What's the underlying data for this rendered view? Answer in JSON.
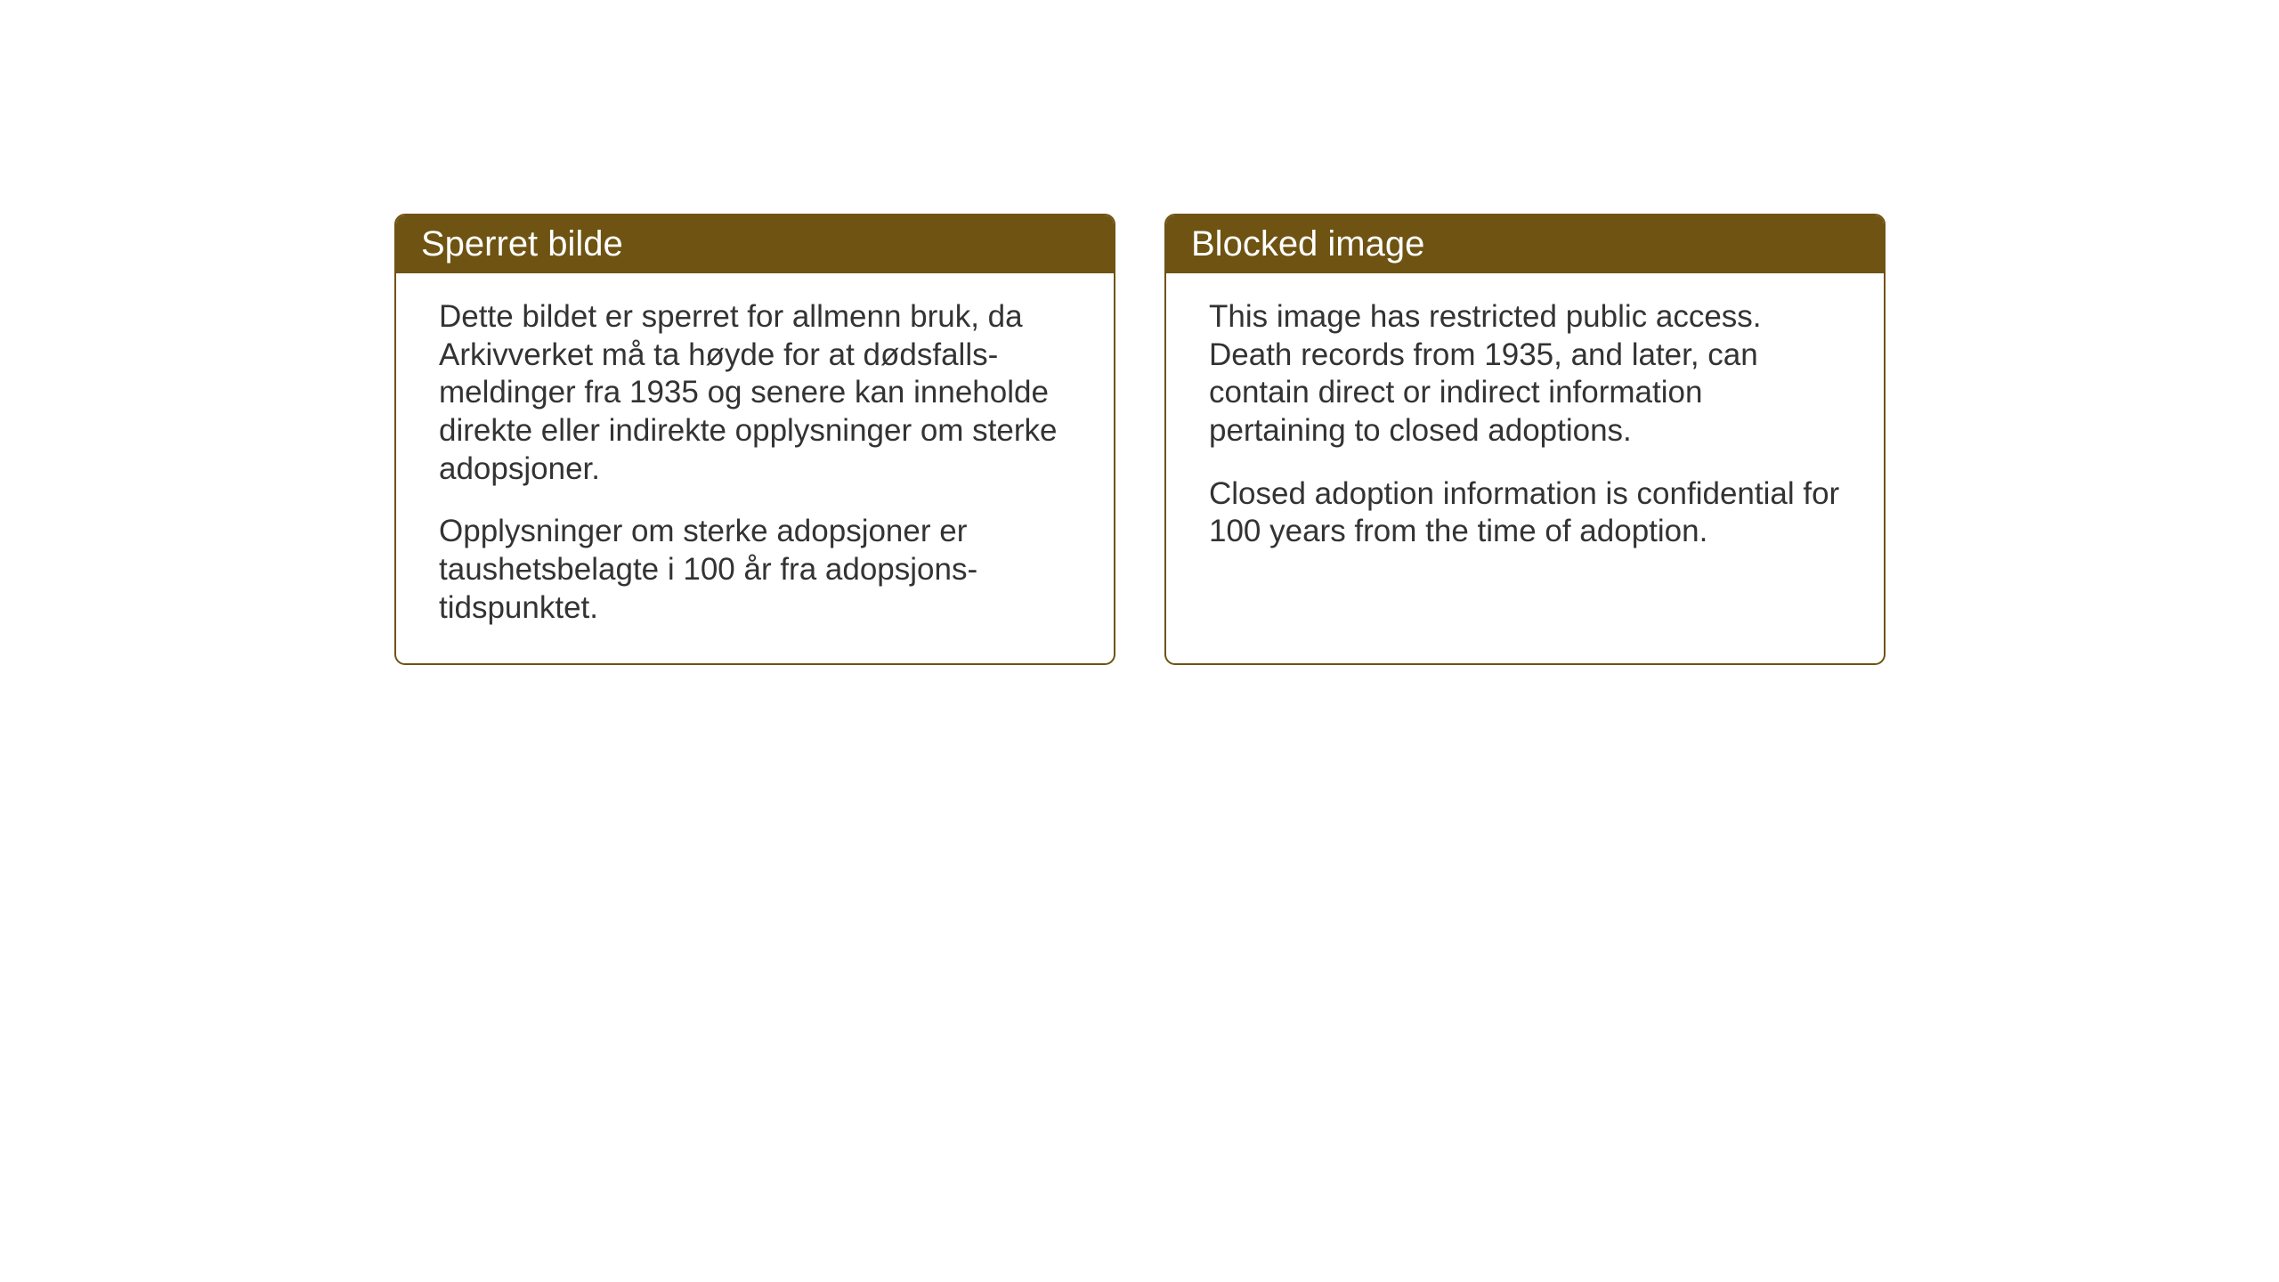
{
  "layout": {
    "background_color": "#ffffff",
    "card_border_color": "#6e5312",
    "card_header_bg": "#6e5312",
    "card_header_text_color": "#ffffff",
    "body_text_color": "#333333",
    "card_border_radius": 12,
    "card_border_width": 2,
    "header_fontsize": 40,
    "body_fontsize": 35
  },
  "cards": {
    "norwegian": {
      "title": "Sperret bilde",
      "paragraph1": "Dette bildet er sperret for allmenn bruk, da Arkivverket må ta høyde for at dødsfalls­meldinger fra 1935 og senere kan inneholde direkte eller indirekte opplysninger om sterke adopsjoner.",
      "paragraph2": "Opplysninger om sterke adopsjoner er taushetsbelagte i 100 år fra adopsjons­tidspunktet."
    },
    "english": {
      "title": "Blocked image",
      "paragraph1": "This image has restricted public access. Death records from 1935, and later, can contain direct or indirect information pertaining to closed adoptions.",
      "paragraph2": "Closed adoption information is confidential for 100 years from the time of adoption."
    }
  }
}
